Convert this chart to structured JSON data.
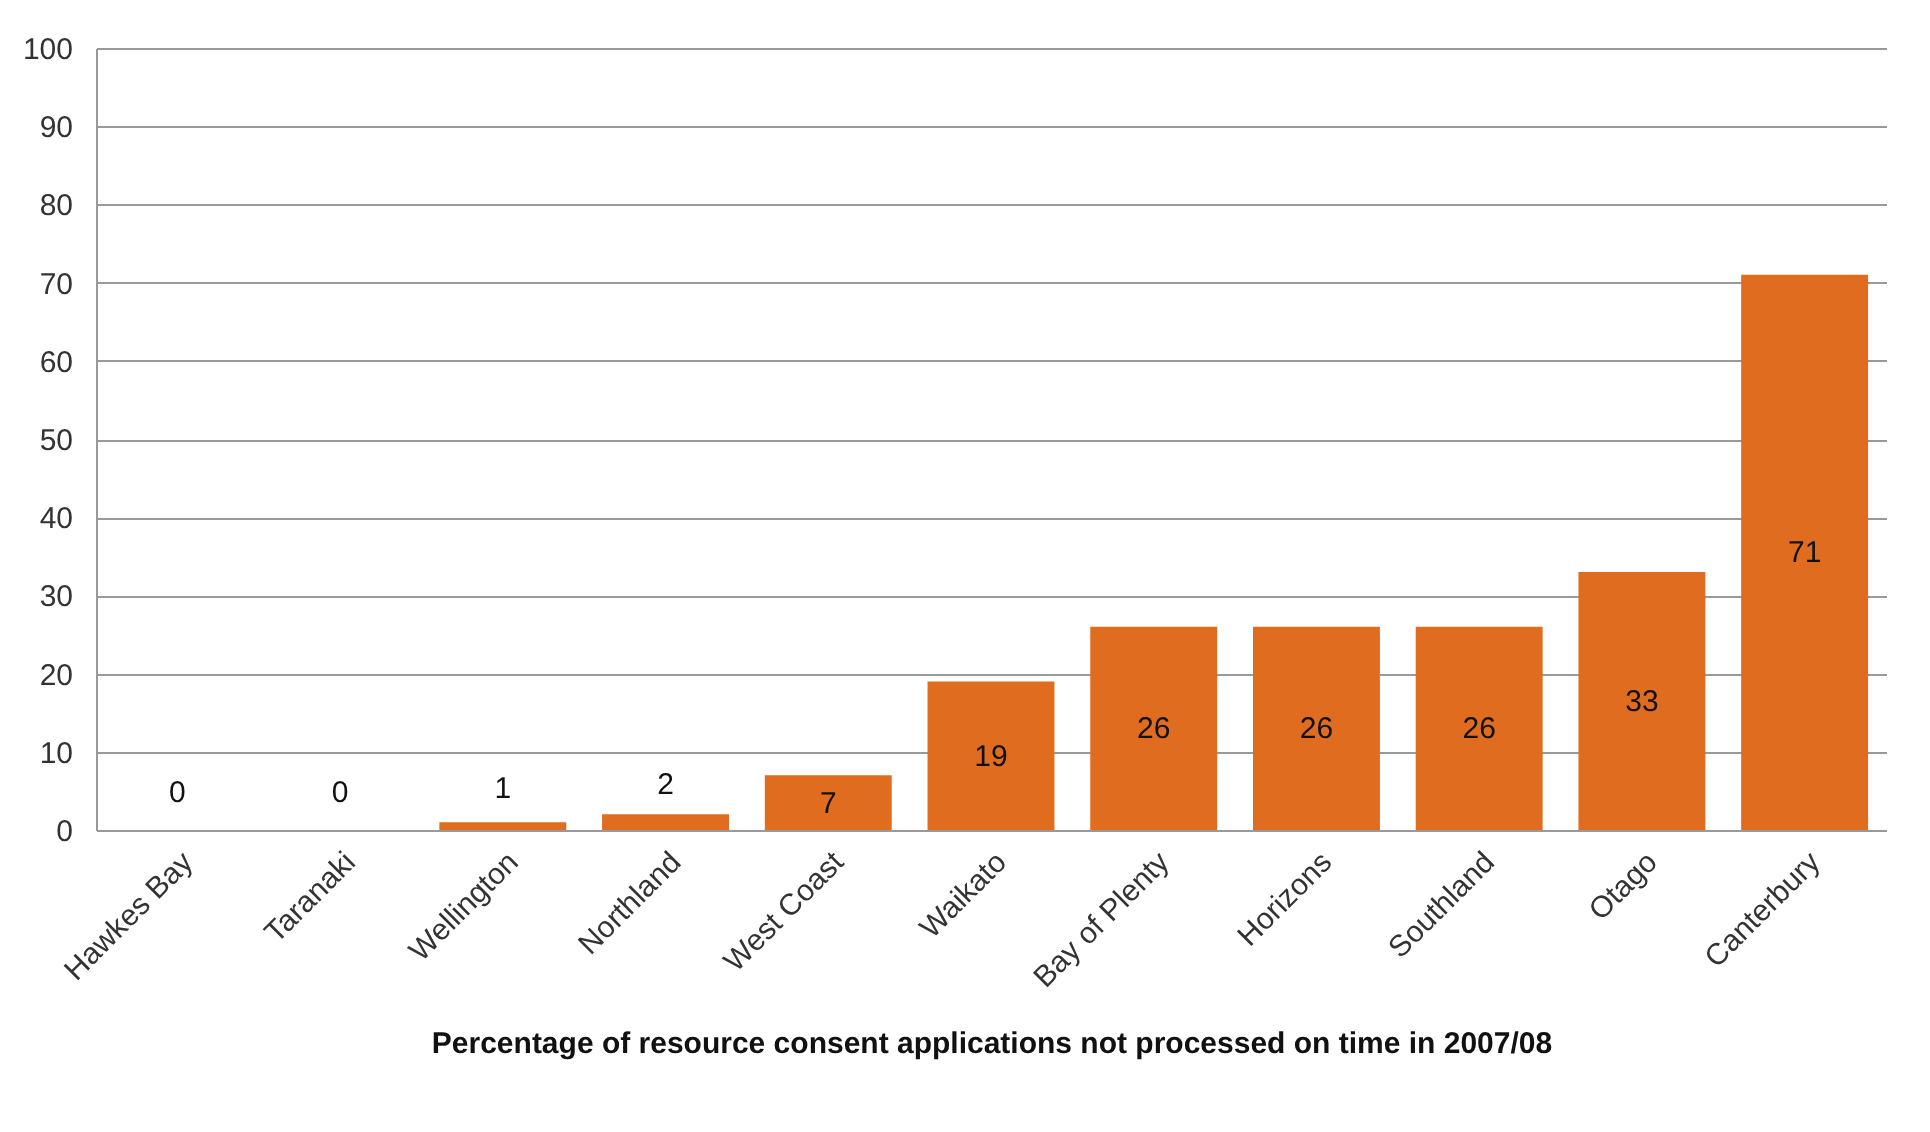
{
  "chart_data": {
    "type": "bar",
    "xlabel": "Percentage of resource consent applications not processed on time in 2007/08",
    "categories": [
      "Hawkes Bay",
      "Taranaki",
      "Wellington",
      "Northland",
      "West Coast",
      "Waikato",
      "Bay of Plenty",
      "Horizons",
      "Southland",
      "Otago",
      "Canterbury"
    ],
    "values": [
      0,
      0,
      1,
      2,
      7,
      19,
      26,
      26,
      26,
      33,
      71
    ],
    "color": "#e06c1f",
    "ylim": [
      0,
      100
    ],
    "yticks": [
      0,
      10,
      20,
      30,
      40,
      50,
      60,
      70,
      80,
      90,
      100
    ],
    "grid": "y",
    "data_labels": true
  }
}
